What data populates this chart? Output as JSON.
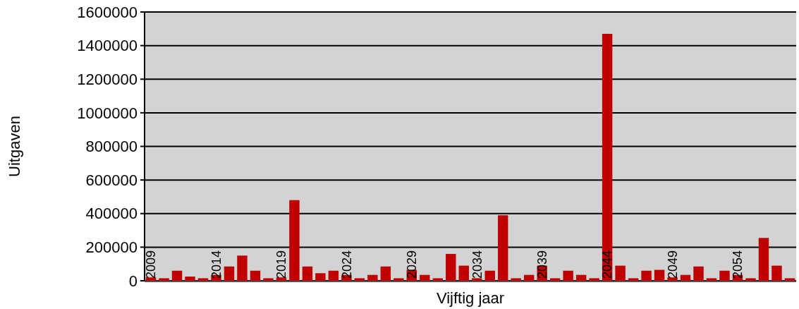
{
  "chart_data": {
    "type": "bar",
    "xlabel": "Vijftig jaar",
    "ylabel": "Uitgaven",
    "categories": [
      "2009",
      null,
      null,
      null,
      null,
      "2014",
      null,
      null,
      null,
      null,
      "2019",
      null,
      null,
      null,
      null,
      "2024",
      null,
      null,
      null,
      null,
      "2029",
      null,
      null,
      null,
      null,
      "2034",
      null,
      null,
      null,
      null,
      "2039",
      null,
      null,
      null,
      null,
      "2044",
      null,
      null,
      null,
      null,
      "2049",
      null,
      null,
      null,
      null,
      "2054",
      null,
      null,
      null,
      null
    ],
    "values": [
      20000,
      15000,
      60000,
      25000,
      15000,
      35000,
      85000,
      150000,
      60000,
      15000,
      20000,
      480000,
      85000,
      45000,
      60000,
      35000,
      15000,
      35000,
      85000,
      15000,
      65000,
      35000,
      15000,
      160000,
      90000,
      15000,
      60000,
      390000,
      15000,
      35000,
      90000,
      15000,
      60000,
      35000,
      15000,
      1470000,
      90000,
      15000,
      60000,
      65000,
      20000,
      35000,
      85000,
      15000,
      60000,
      35000,
      15000,
      255000,
      90000,
      15000
    ],
    "color": "#c00000",
    "ylim": [
      0,
      1600000
    ],
    "yticks": [
      0,
      200000,
      400000,
      600000,
      800000,
      1000000,
      1200000,
      1400000,
      1600000
    ],
    "grid": "y"
  }
}
